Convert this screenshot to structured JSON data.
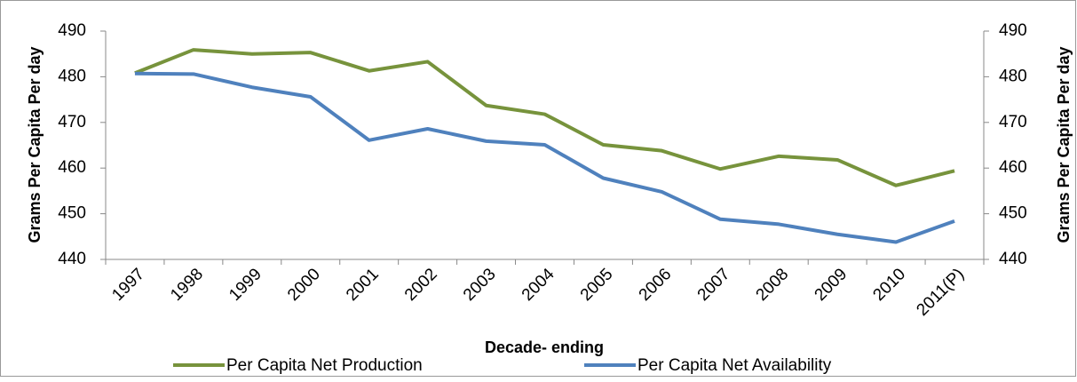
{
  "chart_data": {
    "type": "line",
    "x_label": "Decade- ending",
    "y_label": "Grams Per Capita Per day",
    "y2_label": "Grams Per Capita Per day",
    "categories": [
      "1997",
      "1998",
      "1999",
      "2000",
      "2001",
      "2002",
      "2003",
      "2004",
      "2005",
      "2006",
      "2007",
      "2008",
      "2009",
      "2010",
      "2011(P)"
    ],
    "series": [
      {
        "name": "Per Capita Net Production",
        "color": "#77933c",
        "values": [
          480.8,
          485.9,
          485.0,
          485.3,
          481.3,
          483.3,
          473.7,
          471.8,
          465.1,
          463.8,
          459.8,
          462.6,
          461.8,
          456.2,
          459.4
        ]
      },
      {
        "name": "Per Capita Net Availability",
        "color": "#4f81bd",
        "values": [
          480.7,
          480.6,
          477.7,
          475.6,
          466.1,
          468.6,
          465.9,
          465.1,
          457.8,
          454.8,
          448.8,
          447.7,
          445.5,
          443.8,
          448.4
        ]
      }
    ],
    "ylim": [
      440,
      490
    ],
    "yticks": [
      440,
      450,
      460,
      470,
      480,
      490
    ],
    "y2lim": [
      440,
      490
    ],
    "y2ticks": [
      440,
      450,
      460,
      470,
      480,
      490
    ],
    "legend": "bottom"
  }
}
